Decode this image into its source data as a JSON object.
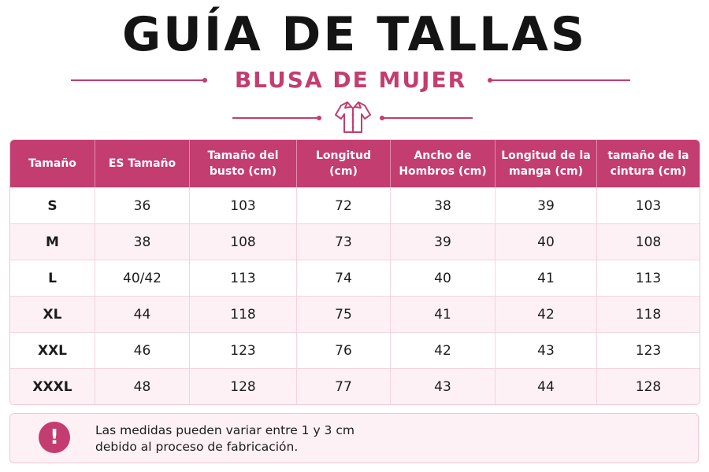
{
  "title": "GUÍA DE TALLAS",
  "subtitle": "BLUSA DE MUJER",
  "icons": {
    "garment": "blouse-icon",
    "notice": "exclamation-icon"
  },
  "colors": {
    "accent": "#c33d70",
    "row_alt": "#fdf1f5",
    "title": "#141414"
  },
  "table": {
    "headers": [
      "Tamaño",
      "ES Tamaño",
      "Tamaño del busto (cm)",
      "Longitud (cm)",
      "Ancho de Hombros (cm)",
      "Longitud de la manga (cm)",
      "tamaño de la cintura (cm)"
    ],
    "rows": [
      [
        "S",
        "36",
        "103",
        "72",
        "38",
        "39",
        "103"
      ],
      [
        "M",
        "38",
        "108",
        "73",
        "39",
        "40",
        "108"
      ],
      [
        "L",
        "40/42",
        "113",
        "74",
        "40",
        "41",
        "113"
      ],
      [
        "XL",
        "44",
        "118",
        "75",
        "41",
        "42",
        "118"
      ],
      [
        "XXL",
        "46",
        "123",
        "76",
        "42",
        "43",
        "123"
      ],
      [
        "XXXL",
        "48",
        "128",
        "77",
        "43",
        "44",
        "128"
      ]
    ]
  },
  "note": {
    "icon_glyph": "!",
    "line1": "Las medidas pueden variar entre 1 y 3 cm",
    "line2": "debido al proceso de fabricación."
  }
}
